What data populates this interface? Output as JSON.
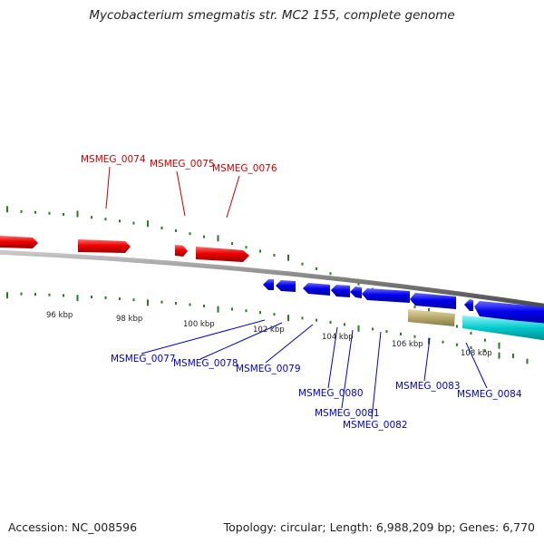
{
  "header": {
    "title": "Mycobacterium smegmatis str. MC2 155, complete genome"
  },
  "footer": {
    "accession": "Accession: NC_008596",
    "summary": "Topology: circular; Length: 6,988,209 bp; Genes: 6,770"
  },
  "scale_labels": [
    "96 kbp",
    "98 kbp",
    "100 kbp",
    "102 kbp",
    "104 kbp",
    "106 kbp",
    "108 kbp"
  ],
  "genes_forward": [
    "MSMEG_0074",
    "MSMEG_0075",
    "MSMEG_0076"
  ],
  "genes_reverse": [
    "MSMEG_0077",
    "MSMEG_0078",
    "MSMEG_0079",
    "MSMEG_0080",
    "MSMEG_0081",
    "MSMEG_0082",
    "MSMEG_0083",
    "MSMEG_0084"
  ],
  "colors": {
    "forward_cds": "#ee0000",
    "reverse_cds": "#0000ee",
    "reverse_other": "#b5a86a",
    "reverse_rna": "#00c8cc",
    "backbone": "#808080",
    "ticks": "#2a7a2a"
  }
}
